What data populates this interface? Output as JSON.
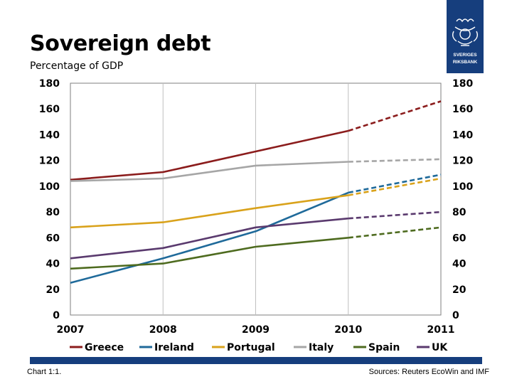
{
  "slide": {
    "title": "Sovereign debt",
    "subtitle": "Percentage of GDP",
    "footer_left": "Chart 1:1.",
    "footer_right": "Sources: Reuters EcoWin and IMF",
    "logo_text_line1": "SVERIGES",
    "logo_text_line2": "RIKSBANK",
    "brand_color": "#163e7d"
  },
  "chart_data": {
    "type": "line",
    "title": "Sovereign debt",
    "subtitle": "Percentage of GDP",
    "xlabel": "",
    "ylabel": "",
    "x": [
      2007,
      2008,
      2009,
      2010,
      2011
    ],
    "x_tick_labels": [
      "2007",
      "2008",
      "2009",
      "2010",
      "2011"
    ],
    "ylim": [
      0,
      180
    ],
    "y_ticks": [
      0,
      20,
      40,
      60,
      80,
      100,
      120,
      140,
      160,
      180
    ],
    "y_tick_labels": [
      "0",
      "20",
      "40",
      "60",
      "80",
      "100",
      "120",
      "140",
      "160",
      "180"
    ],
    "grid": "vertical",
    "legend_position": "bottom",
    "forecast_from": 2010,
    "series": [
      {
        "name": "Greece",
        "color": "#8b1c1c",
        "values": [
          105,
          111,
          127,
          143,
          166
        ]
      },
      {
        "name": "Ireland",
        "color": "#1f6a9a",
        "values": [
          25,
          44,
          65,
          95,
          109
        ]
      },
      {
        "name": "Portugal",
        "color": "#d9a21b",
        "values": [
          68,
          72,
          83,
          93,
          106
        ]
      },
      {
        "name": "Italy",
        "color": "#a6a6a6",
        "values": [
          104,
          106,
          116,
          119,
          121
        ]
      },
      {
        "name": "Spain",
        "color": "#4e6b1f",
        "values": [
          36,
          40,
          53,
          60,
          68
        ]
      },
      {
        "name": "UK",
        "color": "#5a3a6e",
        "values": [
          44,
          52,
          68,
          75,
          80
        ]
      }
    ]
  }
}
